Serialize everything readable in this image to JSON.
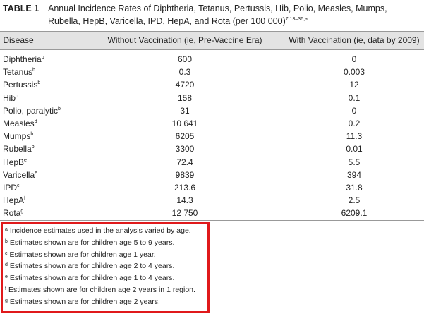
{
  "title": {
    "label": "TABLE 1",
    "lines": [
      "Annual Incidence Rates of Diphtheria, Tetanus, Pertussis, Hib, Polio, Measles, Mumps,",
      "Rubella, HepB, Varicella, IPD, HepA, and Rota (per 100 000)"
    ],
    "sup": "7,13–36,a"
  },
  "table": {
    "headers": [
      "Disease",
      "Without Vaccination (ie, Pre-Vaccine Era)",
      "With Vaccination (ie, data by 2009)"
    ],
    "rows": [
      {
        "disease": "Diphtheria",
        "note": "b",
        "without": "600",
        "with": "0"
      },
      {
        "disease": "Tetanus",
        "note": "b",
        "without": "0.3",
        "with": "0.003"
      },
      {
        "disease": "Pertussis",
        "note": "b",
        "without": "4720",
        "with": "12"
      },
      {
        "disease": "Hib",
        "note": "c",
        "without": "158",
        "with": "0.1"
      },
      {
        "disease": "Polio, paralytic",
        "note": "b",
        "without": "31",
        "with": "0"
      },
      {
        "disease": "Measles",
        "note": "d",
        "without": "10 641",
        "with": "0.2"
      },
      {
        "disease": "Mumps",
        "note": "b",
        "without": "6205",
        "with": "11.3"
      },
      {
        "disease": "Rubella",
        "note": "b",
        "without": "3300",
        "with": "0.01"
      },
      {
        "disease": "HepB",
        "note": "e",
        "without": "72.4",
        "with": "5.5"
      },
      {
        "disease": "Varicella",
        "note": "e",
        "without": "9839",
        "with": "394"
      },
      {
        "disease": "IPD",
        "note": "c",
        "without": "213.6",
        "with": "31.8"
      },
      {
        "disease": "HepA",
        "note": "f",
        "without": "14.3",
        "with": "2.5"
      },
      {
        "disease": "Rota",
        "note": "g",
        "without": "12 750",
        "with": "6209.1"
      }
    ]
  },
  "footnotes": [
    {
      "mark": "a",
      "text": "Incidence estimates used in the analysis varied by age."
    },
    {
      "mark": "b",
      "text": "Estimates shown are for children age 5 to 9 years."
    },
    {
      "mark": "c",
      "text": "Estimates shown are for children age 1 year."
    },
    {
      "mark": "d",
      "text": "Estimates shown are for children age 2 to 4 years."
    },
    {
      "mark": "e",
      "text": "Estimates shown are for children age 1 to 4 years."
    },
    {
      "mark": "f",
      "text": "Estimates shown are for children age 2 years in 1 region."
    },
    {
      "mark": "g",
      "text": "Estimates shown are for children age 2 years."
    }
  ]
}
